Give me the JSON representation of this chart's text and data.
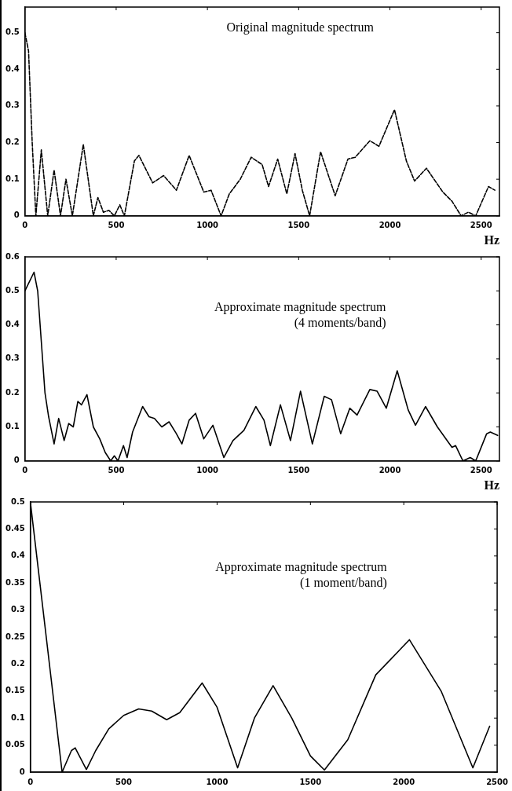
{
  "chart_data": [
    {
      "type": "line",
      "title": "Original magnitude spectrum",
      "xlabel": "Hz",
      "line_style": "dashed",
      "marker": "none",
      "grid": false,
      "legend": false,
      "x": [
        0,
        20,
        40,
        60,
        90,
        125,
        160,
        195,
        225,
        260,
        320,
        375,
        400,
        430,
        460,
        490,
        520,
        545,
        600,
        625,
        700,
        760,
        830,
        900,
        980,
        1020,
        1075,
        1120,
        1180,
        1240,
        1300,
        1335,
        1385,
        1435,
        1480,
        1520,
        1560,
        1620,
        1700,
        1770,
        1810,
        1890,
        1940,
        2025,
        2090,
        2135,
        2200,
        2290,
        2340,
        2390,
        2430,
        2470,
        2540,
        2575
      ],
      "series": [
        {
          "color": "#000000",
          "values": [
            0.5,
            0.45,
            0.2,
            0,
            0.18,
            0,
            0.125,
            0,
            0.1,
            0,
            0.195,
            0,
            0.05,
            0.01,
            0.015,
            0,
            0.03,
            0,
            0.15,
            0.165,
            0.09,
            0.11,
            0.07,
            0.165,
            0.065,
            0.07,
            0,
            0.06,
            0.1,
            0.16,
            0.14,
            0.08,
            0.155,
            0.06,
            0.17,
            0.07,
            0,
            0.175,
            0.055,
            0.155,
            0.16,
            0.205,
            0.19,
            0.29,
            0.15,
            0.095,
            0.13,
            0.065,
            0.04,
            0,
            0.01,
            0,
            0.08,
            0.07
          ]
        }
      ],
      "xlim": [
        0,
        2600
      ],
      "xticks": [
        0,
        500,
        1000,
        1500,
        2000,
        2500
      ],
      "ylim": [
        0,
        0.57
      ],
      "yticks": [
        0,
        0.1,
        0.2,
        0.3,
        0.4,
        0.5
      ]
    },
    {
      "type": "line",
      "title": "Approximate magnitude spectrum",
      "subtitle": "(4 moments/band)",
      "xlabel": "Hz",
      "line_style": "solid",
      "marker": "none",
      "grid": false,
      "legend": false,
      "x": [
        0,
        50,
        70,
        90,
        110,
        130,
        160,
        185,
        215,
        240,
        265,
        290,
        310,
        340,
        375,
        410,
        440,
        470,
        490,
        510,
        540,
        560,
        590,
        645,
        680,
        710,
        750,
        790,
        830,
        860,
        900,
        935,
        980,
        1030,
        1090,
        1140,
        1200,
        1265,
        1310,
        1345,
        1400,
        1455,
        1510,
        1575,
        1640,
        1680,
        1730,
        1780,
        1820,
        1890,
        1930,
        1980,
        2040,
        2100,
        2140,
        2195,
        2260,
        2300,
        2340,
        2360,
        2400,
        2440,
        2470,
        2530,
        2550,
        2590
      ],
      "series": [
        {
          "color": "#000000",
          "values": [
            0.5,
            0.555,
            0.5,
            0.35,
            0.2,
            0.13,
            0.05,
            0.125,
            0.06,
            0.11,
            0.1,
            0.175,
            0.165,
            0.195,
            0.1,
            0.065,
            0.025,
            0,
            0.015,
            0,
            0.045,
            0.01,
            0.085,
            0.16,
            0.13,
            0.125,
            0.1,
            0.115,
            0.08,
            0.05,
            0.12,
            0.14,
            0.065,
            0.105,
            0.01,
            0.06,
            0.09,
            0.16,
            0.12,
            0.045,
            0.165,
            0.06,
            0.205,
            0.05,
            0.19,
            0.18,
            0.08,
            0.155,
            0.135,
            0.21,
            0.205,
            0.155,
            0.265,
            0.15,
            0.105,
            0.16,
            0.1,
            0.07,
            0.04,
            0.045,
            0,
            0.01,
            0,
            0.08,
            0.085,
            0.075
          ]
        }
      ],
      "xlim": [
        0,
        2600
      ],
      "xticks": [
        0,
        500,
        1000,
        1500,
        2000,
        2500
      ],
      "ylim": [
        0,
        0.6
      ],
      "yticks": [
        0,
        0.1,
        0.2,
        0.3,
        0.4,
        0.5,
        0.6
      ]
    },
    {
      "type": "line",
      "title": "Approximate magnitude spectrum",
      "subtitle": "(1 moment/band)",
      "line_style": "solid",
      "marker": "none",
      "grid": false,
      "legend": false,
      "x": [
        0,
        170,
        220,
        240,
        300,
        350,
        420,
        500,
        580,
        650,
        730,
        800,
        920,
        1000,
        1110,
        1200,
        1300,
        1400,
        1500,
        1575,
        1700,
        1850,
        2030,
        2200,
        2370,
        2460
      ],
      "series": [
        {
          "color": "#000000",
          "values": [
            0.5,
            0,
            0.04,
            0.045,
            0.005,
            0.04,
            0.08,
            0.105,
            0.117,
            0.113,
            0.097,
            0.11,
            0.165,
            0.12,
            0.008,
            0.1,
            0.16,
            0.1,
            0.03,
            0.004,
            0.06,
            0.18,
            0.245,
            0.15,
            0.008,
            0.085
          ]
        }
      ],
      "xlim": [
        0,
        2500
      ],
      "xticks": [
        0,
        500,
        1000,
        1500,
        2000,
        2500
      ],
      "ylim": [
        0,
        0.5
      ],
      "yticks": [
        0,
        0.05,
        0.1,
        0.15,
        0.2,
        0.25,
        0.3,
        0.35,
        0.4,
        0.45,
        0.5
      ]
    }
  ]
}
